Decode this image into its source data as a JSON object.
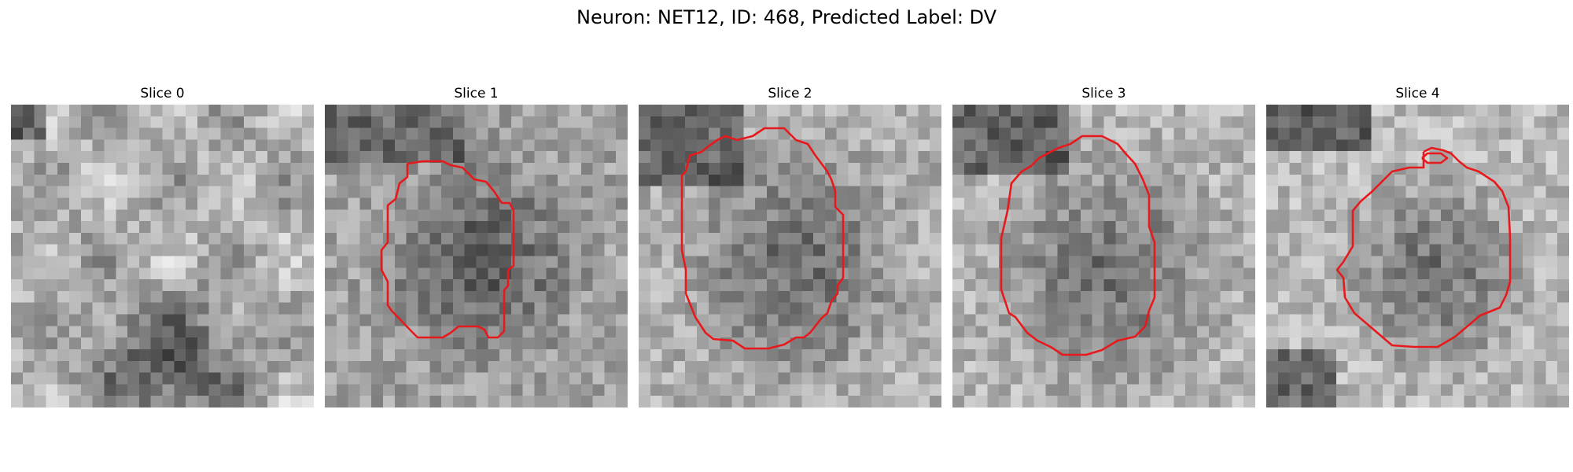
{
  "figure": {
    "title": "Neuron: NET12, ID: 468, Predicted Label: DV"
  },
  "slices": [
    {
      "label": "Slice 0",
      "has_contour": false
    },
    {
      "label": "Slice 1",
      "has_contour": true
    },
    {
      "label": "Slice 2",
      "has_contour": true
    },
    {
      "label": "Slice 3",
      "has_contour": true
    },
    {
      "label": "Slice 4",
      "has_contour": true
    }
  ],
  "style": {
    "contour_color": "#e8191c",
    "colormap": "grayscale"
  }
}
